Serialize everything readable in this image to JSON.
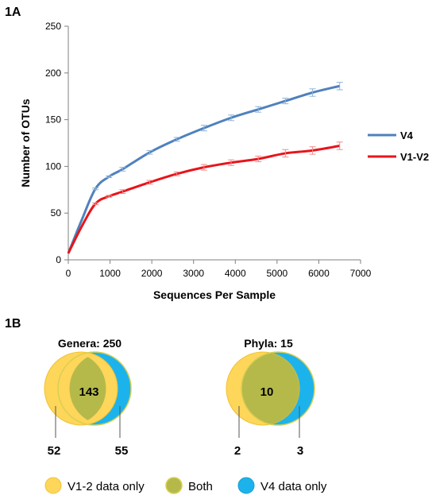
{
  "chart_data": [
    {
      "panel_label": "1A",
      "type": "line",
      "xlabel": "Sequences Per Sample",
      "ylabel": "Number of OTUs",
      "xlim": [
        0,
        7000
      ],
      "ylim": [
        0,
        250
      ],
      "xticks": [
        "0",
        "1000",
        "2000",
        "3000",
        "4000",
        "5000",
        "6000",
        "7000"
      ],
      "yticks": [
        "0",
        "50",
        "100",
        "150",
        "200",
        "250"
      ],
      "grid": false,
      "legend": "right",
      "series": [
        {
          "name": "V4",
          "color": "#4f81bd",
          "x": [
            0,
            325,
            650,
            975,
            1300,
            1950,
            2600,
            3250,
            3900,
            4550,
            5200,
            5850,
            6500
          ],
          "y": [
            7,
            43,
            76,
            89,
            97,
            115,
            129,
            141,
            152,
            161,
            170,
            179,
            186
          ],
          "err": [
            0,
            0,
            1,
            1,
            2,
            2,
            2,
            3,
            3,
            3,
            3,
            4,
            4
          ]
        },
        {
          "name": "V1-V2",
          "color": "#e8141b",
          "x": [
            0,
            325,
            650,
            975,
            1300,
            1950,
            2600,
            3250,
            3900,
            4550,
            5200,
            5850,
            6500
          ],
          "y": [
            7,
            36,
            60,
            68,
            73,
            83,
            92,
            99,
            104,
            108,
            114,
            117,
            122
          ],
          "err": [
            0,
            0,
            1,
            1,
            2,
            2,
            2,
            3,
            3,
            3,
            4,
            4,
            4
          ]
        }
      ]
    },
    {
      "panel_label": "1B",
      "type": "venn",
      "diagrams": [
        {
          "title": "Genera: 250",
          "left_only": "52",
          "both": "143",
          "right_only": "55"
        },
        {
          "title": "Phyla: 15",
          "left_only": "2",
          "both": "10",
          "right_only": "3"
        }
      ],
      "legend": [
        {
          "label": "V1-2 data only",
          "color": "#fdd65a"
        },
        {
          "label": "Both",
          "color": "#b5b94a"
        },
        {
          "label": "V4 data only",
          "color": "#1cb3ec"
        }
      ]
    }
  ]
}
